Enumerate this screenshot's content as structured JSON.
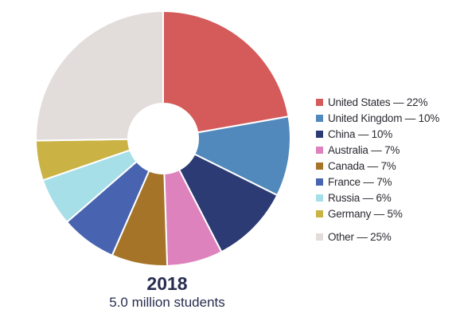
{
  "chart_data": {
    "type": "pie",
    "donut": true,
    "title": "2018",
    "subtitle": "5.0 million students",
    "slices": [
      {
        "label": "United States — 22%",
        "value": 22,
        "color": "#d55a5a"
      },
      {
        "label": "United Kingdom — 10%",
        "value": 10,
        "color": "#5189bc"
      },
      {
        "label": "China — 10%",
        "value": 10,
        "color": "#2c3b73"
      },
      {
        "label": "Australia — 7%",
        "value": 7,
        "color": "#dd82bd"
      },
      {
        "label": "Canada — 7%",
        "value": 7,
        "color": "#a57428"
      },
      {
        "label": "France — 7%",
        "value": 7,
        "color": "#4863b0"
      },
      {
        "label": "Russia — 6%",
        "value": 6,
        "color": "#a6dfe8"
      },
      {
        "label": "Germany — 5%",
        "value": 5,
        "color": "#cab344"
      },
      {
        "label": "Other — 25%",
        "value": 25,
        "color": "#e2dcda"
      }
    ],
    "legend_position": "right"
  }
}
